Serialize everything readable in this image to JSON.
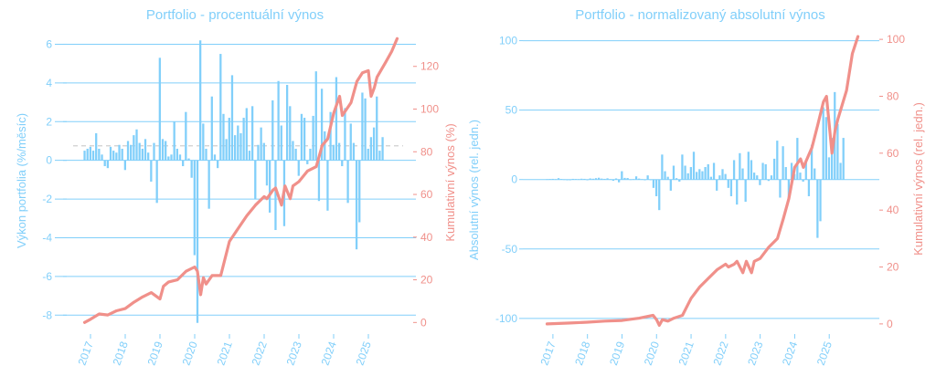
{
  "colors": {
    "bar": "#81CFFA",
    "line": "#F0908A",
    "left_axis": "#81CFFA",
    "right_axis": "#F0908A",
    "title": "#81CFFA",
    "grid": "#81CFFA",
    "mean_line": "#cfcfcf"
  },
  "chart_data": [
    {
      "type": "bar",
      "title": "Portfolio - procentuální výnos",
      "ylabel_left": "Výkon portfolia (%/měsíc)",
      "ylabel_right": "Kumulativní výnos (%)",
      "ylim_left": [
        -8.6,
        6.4
      ],
      "ylim_right": [
        -2,
        134
      ],
      "yticks_left": [
        "-8",
        "-6",
        "-4",
        "-2",
        "0",
        "2",
        "4",
        "6"
      ],
      "yticks_right": [
        "0",
        "20",
        "40",
        "60",
        "80",
        "100",
        "120"
      ],
      "xlim": [
        2016.5,
        2026.0
      ],
      "xticks": [
        "2017",
        "2018",
        "2019",
        "2020",
        "2021",
        "2022",
        "2023",
        "2024",
        "2025"
      ],
      "grid": true,
      "mean_value": 0.75,
      "series": [
        {
          "kind": "bar",
          "x_start": 2016.83,
          "x_step": 0.0833,
          "values": [
            0.5,
            0.6,
            0.7,
            0.5,
            1.4,
            0.6,
            0.3,
            -0.3,
            -0.4,
            0.7,
            0.5,
            0.4,
            0.8,
            0.6,
            -0.5,
            1.0,
            0.8,
            1.3,
            1.6,
            0.9,
            0.6,
            1.1,
            0.4,
            -1.1,
            0.9,
            -2.2,
            5.3,
            1.1,
            1.0,
            0.2,
            0.3,
            2.0,
            0.6,
            0.3,
            -0.3,
            2.5,
            0.1,
            -0.9,
            -4.9,
            -8.4,
            6.2,
            1.9,
            0.6,
            -2.5,
            3.3,
            0.3,
            -0.4,
            5.5,
            2.4,
            1.1,
            2.2,
            4.4,
            1.3,
            1.8,
            1.4,
            2.2,
            2.7,
            0.5,
            2.8,
            -2.0,
            0.8,
            1.7,
            0.9,
            -1.3,
            -2.7,
            3.1,
            -3.6,
            4.1,
            1.8,
            -3.4,
            3.9,
            2.8,
            1.0,
            0.6,
            -0.8,
            2.4,
            2.2,
            -0.2,
            0.6,
            2.3,
            4.6,
            -2.1,
            3.7,
            1.5,
            -2.6,
            2.5,
            0.8,
            4.3,
            0.9,
            -0.3,
            2.7,
            -2.2,
            1.9,
            0.9,
            -4.6,
            -3.2,
            3.5,
            3.2,
            0.6,
            1.2,
            1.7,
            3.3,
            0.5,
            1.2
          ]
        },
        {
          "kind": "line",
          "x": [
            2016.83,
            2017.0,
            2017.25,
            2017.5,
            2017.75,
            2018.0,
            2018.25,
            2018.5,
            2018.75,
            2019.0,
            2019.1,
            2019.25,
            2019.5,
            2019.75,
            2020.0,
            2020.08,
            2020.17,
            2020.25,
            2020.33,
            2020.5,
            2020.75,
            2021.0,
            2021.25,
            2021.5,
            2021.75,
            2022.0,
            2022.08,
            2022.25,
            2022.33,
            2022.5,
            2022.6,
            2022.75,
            2022.83,
            2023.0,
            2023.25,
            2023.5,
            2023.67,
            2023.83,
            2024.0,
            2024.17,
            2024.25,
            2024.5,
            2024.67,
            2024.83,
            2025.0,
            2025.08,
            2025.17,
            2025.25,
            2025.5,
            2025.67,
            2025.83
          ],
          "y": [
            0,
            1.5,
            4,
            3.5,
            5.5,
            6.5,
            9.5,
            12,
            14,
            11,
            17,
            19,
            20,
            24,
            26,
            24,
            13,
            21,
            18,
            22,
            22,
            38,
            44,
            50,
            55,
            59,
            58,
            62,
            63,
            55,
            64,
            58,
            64,
            66,
            71,
            73,
            83,
            86,
            98,
            106,
            97,
            103,
            113,
            117,
            118,
            106,
            110,
            115,
            122,
            127,
            133
          ]
        }
      ]
    },
    {
      "type": "bar",
      "title": "Portfolio - normalizovaný absolutní výnos",
      "ylabel_left": "Absolutní výnos (rel. jedn.)",
      "ylabel_right": "Kumulativní výnos (rel. jedn.)",
      "ylim_left": [
        -106,
        103
      ],
      "ylim_right": [
        -1,
        101
      ],
      "yticks_left": [
        "-100",
        "-50",
        "0",
        "50",
        "100"
      ],
      "yticks_right": [
        "0",
        "20",
        "40",
        "60",
        "80",
        "100"
      ],
      "xlim": [
        2016.5,
        2026.0
      ],
      "xticks": [
        "2017",
        "2018",
        "2019",
        "2020",
        "2021",
        "2022",
        "2023",
        "2024",
        "2025"
      ],
      "grid": true,
      "series": [
        {
          "kind": "bar",
          "x_start": 2016.83,
          "x_step": 0.0833,
          "values": [
            0.3,
            0.4,
            0.5,
            0.3,
            1.0,
            0.4,
            0.2,
            -0.2,
            -0.3,
            0.5,
            0.4,
            0.3,
            0.6,
            0.5,
            -0.4,
            0.8,
            0.6,
            1.0,
            1.3,
            0.7,
            0.5,
            0.9,
            0.3,
            -0.9,
            0.8,
            -2.0,
            6.0,
            1.2,
            1.1,
            0.2,
            0.3,
            2.3,
            0.7,
            0.3,
            -0.3,
            3.0,
            0.1,
            -6.0,
            -12.0,
            -22.0,
            18.0,
            6.0,
            2.0,
            -8.0,
            10.0,
            1.0,
            -1.5,
            18.0,
            10.0,
            4.5,
            9.0,
            20.0,
            5.5,
            7.5,
            6.0,
            9.0,
            11.0,
            2.0,
            12.0,
            -8.0,
            3.0,
            7.5,
            4.0,
            -6.0,
            -12.0,
            14.0,
            -18.0,
            19.0,
            8.0,
            -16.0,
            20.0,
            14.0,
            5.0,
            3.0,
            -4.0,
            12.0,
            11.0,
            -1.0,
            3.0,
            15.0,
            28.0,
            -13.0,
            24.0,
            9.0,
            -15.0,
            12.0,
            4.0,
            30.0,
            5.0,
            -1.5,
            14.0,
            -12.0,
            25.0,
            8.0,
            -42.0,
            -30.0,
            52.0,
            45.0,
            16.0,
            30.0,
            63.0,
            40.0,
            12.0,
            30.0
          ]
        },
        {
          "kind": "line",
          "x": [
            2016.83,
            2017.5,
            2018.0,
            2018.5,
            2019.0,
            2019.5,
            2019.9,
            2020.0,
            2020.08,
            2020.17,
            2020.33,
            2020.5,
            2020.75,
            2021.0,
            2021.25,
            2021.5,
            2021.75,
            2022.0,
            2022.08,
            2022.25,
            2022.33,
            2022.5,
            2022.6,
            2022.75,
            2022.83,
            2023.0,
            2023.25,
            2023.5,
            2023.67,
            2023.83,
            2024.0,
            2024.17,
            2024.25,
            2024.5,
            2024.67,
            2024.83,
            2024.92,
            2025.0,
            2025.08,
            2025.17,
            2025.25,
            2025.5,
            2025.67,
            2025.83
          ],
          "y": [
            0,
            0.3,
            0.6,
            1,
            1.2,
            2,
            3,
            1.5,
            -0.5,
            1.5,
            1,
            2,
            3,
            9,
            13,
            16,
            19,
            21,
            20,
            21,
            22,
            18,
            22,
            18,
            22,
            23,
            27,
            30,
            37,
            44,
            55,
            58,
            55,
            62,
            70,
            78,
            80,
            70,
            60,
            68,
            72,
            82,
            95,
            101
          ]
        }
      ]
    }
  ]
}
